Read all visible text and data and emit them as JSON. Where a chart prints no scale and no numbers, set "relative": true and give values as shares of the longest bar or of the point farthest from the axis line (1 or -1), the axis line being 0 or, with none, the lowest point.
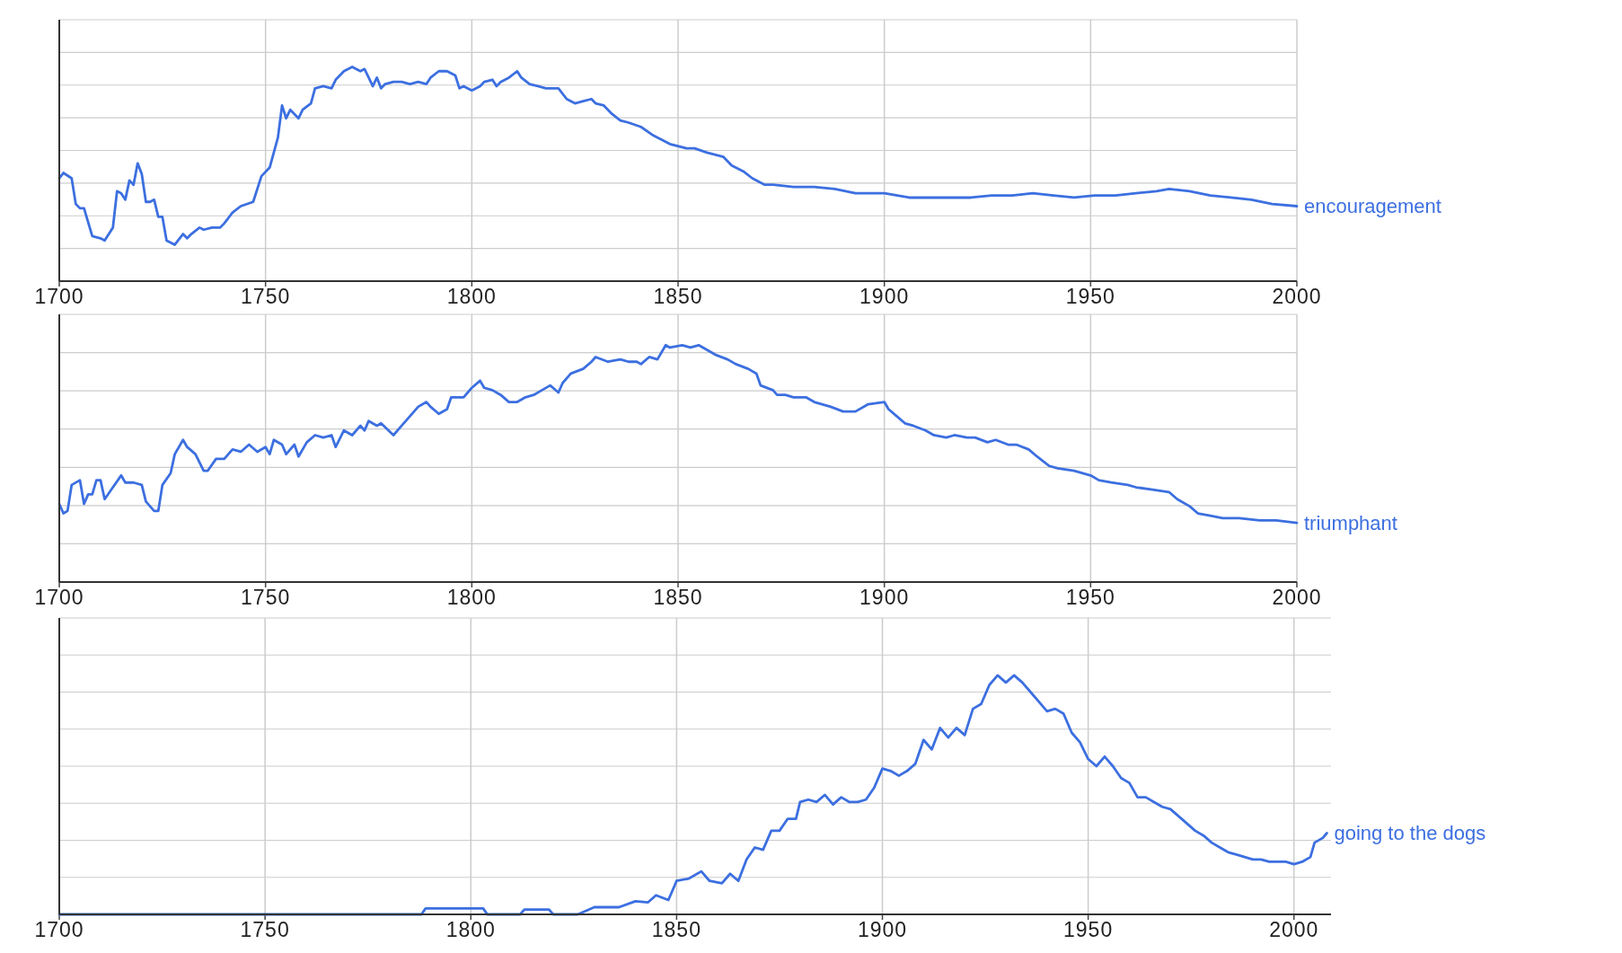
{
  "chart_data": [
    {
      "type": "line",
      "relative": true,
      "grid": true,
      "tick_labels": "x",
      "xlim": [
        1700,
        2000
      ],
      "xticks": [
        1700,
        1750,
        1800,
        1850,
        1900,
        1950,
        2000
      ],
      "series": [
        {
          "name": "encouragement",
          "color": "#3c6fe0",
          "x": [
            1700,
            1701,
            1703,
            1704,
            1705,
            1706,
            1708,
            1710,
            1711,
            1713,
            1714,
            1715,
            1716,
            1717,
            1718,
            1719,
            1720,
            1721,
            1722,
            1723,
            1724,
            1725,
            1726,
            1728,
            1730,
            1731,
            1732,
            1734,
            1735,
            1737,
            1739,
            1740,
            1742,
            1744,
            1747,
            1749,
            1751,
            1753,
            1754,
            1755,
            1756,
            1758,
            1759,
            1761,
            1762,
            1764,
            1766,
            1767,
            1769,
            1771,
            1773,
            1774,
            1775,
            1776,
            1777,
            1778,
            1779,
            1781,
            1783,
            1785,
            1787,
            1789,
            1790,
            1792,
            1794,
            1796,
            1797,
            1798,
            1800,
            1802,
            1803,
            1805,
            1806,
            1807,
            1809,
            1811,
            1812,
            1814,
            1816,
            1818,
            1821,
            1823,
            1825,
            1827,
            1829,
            1830,
            1832,
            1834,
            1836,
            1838,
            1841,
            1844,
            1848,
            1852,
            1854,
            1857,
            1861,
            1863,
            1866,
            1868,
            1871,
            1873,
            1878,
            1883,
            1888,
            1893,
            1900,
            1906,
            1911,
            1916,
            1921,
            1926,
            1931,
            1936,
            1941,
            1946,
            1951,
            1956,
            1961,
            1966,
            1969,
            1974,
            1979,
            1984,
            1989,
            1994,
            2000
          ],
          "values": [
            0.48,
            0.505,
            0.48,
            0.36,
            0.34,
            0.34,
            0.21,
            0.2,
            0.19,
            0.25,
            0.42,
            0.41,
            0.38,
            0.47,
            0.45,
            0.55,
            0.5,
            0.37,
            0.37,
            0.38,
            0.3,
            0.3,
            0.19,
            0.17,
            0.22,
            0.2,
            0.22,
            0.25,
            0.24,
            0.25,
            0.25,
            0.27,
            0.32,
            0.35,
            0.37,
            0.49,
            0.53,
            0.67,
            0.82,
            0.76,
            0.8,
            0.76,
            0.8,
            0.83,
            0.9,
            0.91,
            0.9,
            0.94,
            0.98,
            1,
            0.98,
            0.99,
            0.95,
            0.91,
            0.95,
            0.9,
            0.92,
            0.93,
            0.93,
            0.92,
            0.93,
            0.92,
            0.95,
            0.98,
            0.98,
            0.96,
            0.9,
            0.91,
            0.89,
            0.91,
            0.93,
            0.94,
            0.91,
            0.93,
            0.95,
            0.98,
            0.95,
            0.92,
            0.91,
            0.9,
            0.9,
            0.85,
            0.83,
            0.84,
            0.85,
            0.83,
            0.82,
            0.78,
            0.75,
            0.74,
            0.72,
            0.68,
            0.64,
            0.62,
            0.62,
            0.6,
            0.58,
            0.54,
            0.51,
            0.48,
            0.45,
            0.45,
            0.44,
            0.44,
            0.43,
            0.41,
            0.41,
            0.39,
            0.39,
            0.39,
            0.39,
            0.4,
            0.4,
            0.41,
            0.4,
            0.39,
            0.4,
            0.4,
            0.41,
            0.42,
            0.43,
            0.42,
            0.4,
            0.39,
            0.38,
            0.36,
            0.35
          ]
        }
      ]
    },
    {
      "type": "line",
      "relative": true,
      "grid": true,
      "tick_labels": "x",
      "xlim": [
        1700,
        2000
      ],
      "xticks": [
        1700,
        1750,
        1800,
        1850,
        1900,
        1950,
        2000
      ],
      "series": [
        {
          "name": "triumphant",
          "color": "#3c6fe0",
          "x": [
            1700,
            1701,
            1702,
            1703,
            1705,
            1706,
            1707,
            1708,
            1709,
            1710,
            1711,
            1713,
            1715,
            1716,
            1718,
            1720,
            1721,
            1723,
            1724,
            1725,
            1727,
            1728,
            1730,
            1731,
            1733,
            1735,
            1736,
            1738,
            1740,
            1742,
            1744,
            1746,
            1748,
            1750,
            1751,
            1752,
            1754,
            1755,
            1757,
            1758,
            1760,
            1762,
            1764,
            1766,
            1767,
            1769,
            1771,
            1773,
            1774,
            1775,
            1777,
            1778,
            1781,
            1783,
            1785,
            1787,
            1789,
            1790,
            1792,
            1794,
            1795,
            1798,
            1800,
            1802,
            1803,
            1805,
            1807,
            1809,
            1811,
            1813,
            1815,
            1817,
            1819,
            1821,
            1822,
            1824,
            1827,
            1829,
            1830,
            1833,
            1836,
            1838,
            1840,
            1841,
            1843,
            1845,
            1847,
            1848,
            1851,
            1853,
            1855,
            1857,
            1859,
            1862,
            1864,
            1867,
            1869,
            1870,
            1873,
            1874,
            1876,
            1878,
            1881,
            1883,
            1887,
            1890,
            1893,
            1896,
            1900,
            1901,
            1903,
            1905,
            1907,
            1910,
            1912,
            1915,
            1917,
            1920,
            1922,
            1925,
            1927,
            1930,
            1932,
            1935,
            1937,
            1940,
            1942,
            1946,
            1950,
            1952,
            1955,
            1959,
            1961,
            1965,
            1969,
            1971,
            1974,
            1976,
            1979,
            1982,
            1986,
            1991,
            1995,
            2000
          ],
          "values": [
            0.33,
            0.29,
            0.3,
            0.41,
            0.43,
            0.33,
            0.37,
            0.37,
            0.43,
            0.43,
            0.35,
            0.4,
            0.45,
            0.42,
            0.42,
            0.41,
            0.34,
            0.3,
            0.3,
            0.41,
            0.46,
            0.54,
            0.6,
            0.57,
            0.54,
            0.47,
            0.47,
            0.52,
            0.52,
            0.56,
            0.55,
            0.58,
            0.55,
            0.57,
            0.54,
            0.6,
            0.58,
            0.54,
            0.58,
            0.53,
            0.59,
            0.62,
            0.61,
            0.62,
            0.57,
            0.64,
            0.62,
            0.66,
            0.64,
            0.68,
            0.66,
            0.67,
            0.62,
            0.66,
            0.7,
            0.74,
            0.76,
            0.74,
            0.71,
            0.73,
            0.78,
            0.78,
            0.82,
            0.85,
            0.82,
            0.81,
            0.79,
            0.76,
            0.76,
            0.78,
            0.79,
            0.81,
            0.83,
            0.8,
            0.84,
            0.88,
            0.9,
            0.93,
            0.95,
            0.93,
            0.94,
            0.93,
            0.93,
            0.92,
            0.95,
            0.94,
            1,
            0.99,
            1,
            0.99,
            1,
            0.98,
            0.96,
            0.94,
            0.92,
            0.9,
            0.88,
            0.83,
            0.81,
            0.79,
            0.79,
            0.78,
            0.78,
            0.76,
            0.74,
            0.72,
            0.72,
            0.75,
            0.76,
            0.73,
            0.7,
            0.67,
            0.66,
            0.64,
            0.62,
            0.61,
            0.62,
            0.61,
            0.61,
            0.59,
            0.6,
            0.58,
            0.58,
            0.56,
            0.53,
            0.49,
            0.48,
            0.47,
            0.45,
            0.43,
            0.42,
            0.41,
            0.4,
            0.39,
            0.38,
            0.35,
            0.32,
            0.29,
            0.28,
            0.27,
            0.27,
            0.26,
            0.26,
            0.25
          ]
        }
      ]
    },
    {
      "type": "line",
      "relative": true,
      "grid": true,
      "tick_labels": "x",
      "xlim": [
        1700,
        2009
      ],
      "xticks": [
        1700,
        1750,
        1800,
        1850,
        1900,
        1950,
        2000
      ],
      "series": [
        {
          "name": "going to the dogs",
          "color": "#3c6fe0",
          "x": [
            1700,
            1788,
            1789,
            1803,
            1804,
            1812,
            1813,
            1819,
            1820,
            1826,
            1830,
            1836,
            1840,
            1843,
            1845,
            1848,
            1850,
            1853,
            1856,
            1858,
            1861,
            1863,
            1865,
            1867,
            1869,
            1871,
            1873,
            1875,
            1877,
            1879,
            1880,
            1882,
            1884,
            1886,
            1888,
            1890,
            1892,
            1894,
            1896,
            1898,
            1900,
            1902,
            1904,
            1906,
            1908,
            1910,
            1912,
            1914,
            1916,
            1918,
            1920,
            1922,
            1924,
            1926,
            1928,
            1930,
            1932,
            1934,
            1936,
            1938,
            1940,
            1942,
            1944,
            1946,
            1948,
            1950,
            1952,
            1954,
            1956,
            1958,
            1960,
            1962,
            1964,
            1966,
            1968,
            1970,
            1972,
            1974,
            1976,
            1978,
            1980,
            1982,
            1984,
            1986,
            1988,
            1990,
            1992,
            1994,
            1996,
            1998,
            2000,
            2002,
            2004,
            2005,
            2007,
            2008
          ],
          "values": [
            0,
            0,
            0.025,
            0.025,
            0,
            0,
            0.02,
            0.02,
            0,
            0,
            0.03,
            0.03,
            0.055,
            0.05,
            0.08,
            0.06,
            0.14,
            0.15,
            0.18,
            0.14,
            0.13,
            0.17,
            0.14,
            0.23,
            0.28,
            0.27,
            0.35,
            0.35,
            0.4,
            0.4,
            0.47,
            0.48,
            0.47,
            0.5,
            0.46,
            0.49,
            0.47,
            0.47,
            0.48,
            0.53,
            0.61,
            0.6,
            0.58,
            0.6,
            0.63,
            0.73,
            0.69,
            0.78,
            0.74,
            0.78,
            0.75,
            0.86,
            0.88,
            0.96,
            1,
            0.97,
            1,
            0.97,
            0.93,
            0.89,
            0.85,
            0.86,
            0.84,
            0.76,
            0.72,
            0.65,
            0.62,
            0.66,
            0.62,
            0.57,
            0.55,
            0.49,
            0.49,
            0.47,
            0.45,
            0.44,
            0.41,
            0.38,
            0.35,
            0.33,
            0.3,
            0.28,
            0.26,
            0.25,
            0.24,
            0.23,
            0.23,
            0.22,
            0.22,
            0.22,
            0.21,
            0.22,
            0.24,
            0.3,
            0.32,
            0.34
          ]
        }
      ]
    }
  ]
}
